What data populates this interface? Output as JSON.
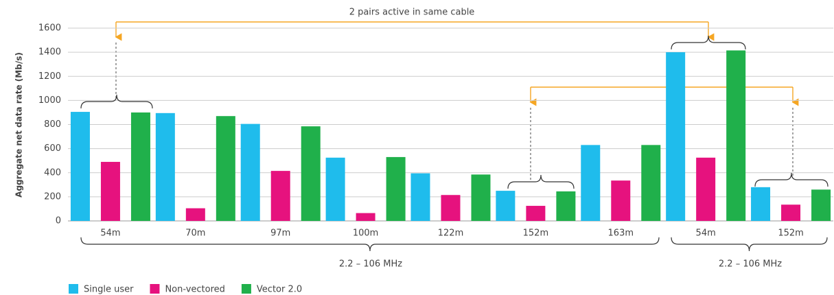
{
  "chart_data": {
    "type": "bar",
    "ylabel": "Aggregate net data rate (Mb/s)",
    "categories": [
      "54m",
      "70m",
      "97m",
      "100m",
      "122m",
      "152m",
      "163m",
      "54m",
      "152m"
    ],
    "series": [
      {
        "name": "Single user",
        "color": "#1fbcec",
        "values": [
          905,
          895,
          805,
          525,
          395,
          250,
          630,
          1400,
          280
        ]
      },
      {
        "name": "Non-vectored",
        "color": "#e6127e",
        "values": [
          490,
          105,
          415,
          65,
          215,
          125,
          335,
          525,
          135
        ]
      },
      {
        "name": "Vector 2.0",
        "color": "#20b04b",
        "values": [
          900,
          870,
          785,
          530,
          385,
          245,
          630,
          1415,
          260
        ]
      }
    ],
    "ylim": [
      0,
      1600
    ],
    "yticks": [
      0,
      200,
      400,
      600,
      800,
      1000,
      1200,
      1400,
      1600
    ],
    "grid": true,
    "annotations": [
      "2 pairs active in same cable",
      "2.2 – 106 MHz",
      "2.2 – 106 MHz"
    ],
    "legend": "bottom-left"
  }
}
